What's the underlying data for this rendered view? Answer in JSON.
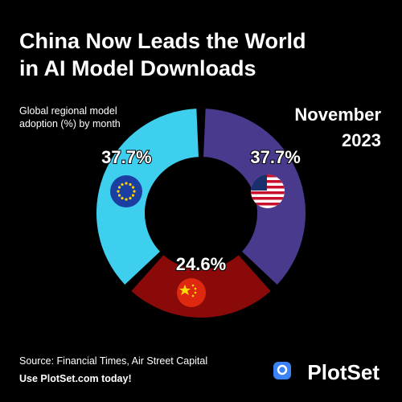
{
  "chart_data": {
    "type": "donut",
    "title": "China Now Leads the World in AI Model Downloads",
    "subtitle": "Global regional model adoption (%) by month",
    "date": "November 2023",
    "values": [
      37.7,
      24.6,
      37.7
    ],
    "value_labels": [
      "37.7%",
      "24.6%",
      "37.7%"
    ],
    "colors": [
      "#4a3a8e",
      "#8a0a0a",
      "#3fcfee"
    ],
    "source": "Source: Financial Times, Air Street Capital",
    "cta": "Use PlotSet.com today!",
    "brand": "PlotSet"
  }
}
